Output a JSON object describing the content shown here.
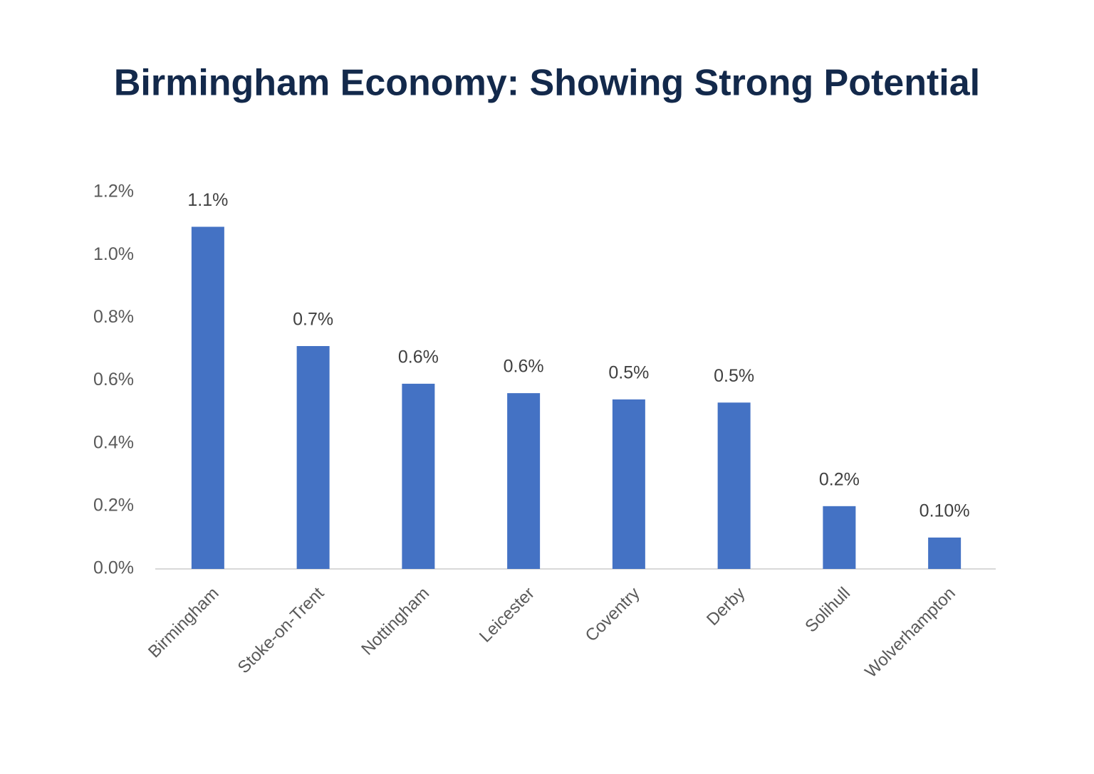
{
  "chart_data": {
    "type": "bar",
    "title": "Birmingham Economy: Showing Strong Potential",
    "categories": [
      "Birmingham",
      "Stoke-on-Trent",
      "Nottingham",
      "Leicester",
      "Coventry",
      "Derby",
      "Solihull",
      "Wolverhampton"
    ],
    "values": [
      1.09,
      0.71,
      0.59,
      0.56,
      0.54,
      0.53,
      0.2,
      0.1
    ],
    "value_labels": [
      "1.1%",
      "0.7%",
      "0.6%",
      "0.6%",
      "0.5%",
      "0.5%",
      "0.2%",
      "0.10%"
    ],
    "color": "#4472c4",
    "ylim": [
      0,
      1.2
    ],
    "yticks": [
      {
        "value": 0,
        "label": "0.0%"
      },
      {
        "value": 0.2,
        "label": "0.2%"
      },
      {
        "value": 0.4,
        "label": "0.4%"
      },
      {
        "value": 0.6,
        "label": "0.6%"
      },
      {
        "value": 0.8,
        "label": "0.8%"
      },
      {
        "value": 1.0,
        "label": "1.0%"
      },
      {
        "value": 1.2,
        "label": "1.2%"
      }
    ],
    "grid": false
  }
}
